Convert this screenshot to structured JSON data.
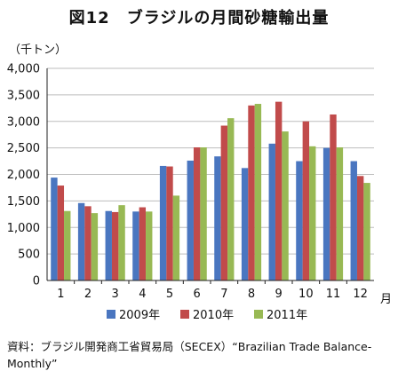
{
  "title": "図12　ブラジルの月間砂糖輸出量",
  "unit_label": "（千トン）",
  "x_unit": "月",
  "source_text": "資料：ブラジル開発商工省貿易局（SECEX）“Brazilian Trade Balance-Monthly”",
  "chart_data": {
    "type": "bar",
    "title": "図12　ブラジルの月間砂糖輸出量",
    "ylabel": "（千トン）",
    "xlabel": "月",
    "categories": [
      "1",
      "2",
      "3",
      "4",
      "5",
      "6",
      "7",
      "8",
      "9",
      "10",
      "11",
      "12"
    ],
    "ylim": [
      0,
      4000
    ],
    "yticks": [
      "0",
      "500",
      "1,000",
      "1,500",
      "2,000",
      "2,500",
      "3,000",
      "3,500",
      "4,000"
    ],
    "ytick_values": [
      0,
      500,
      1000,
      1500,
      2000,
      2500,
      3000,
      3500,
      4000
    ],
    "grid": true,
    "legend_position": "bottom",
    "series": [
      {
        "name": "2009年",
        "color": "#4a76c0",
        "values": [
          1940,
          1460,
          1310,
          1300,
          2160,
          2260,
          2340,
          2120,
          2580,
          2250,
          2500,
          2250
        ]
      },
      {
        "name": "2010年",
        "color": "#c14b4b",
        "values": [
          1790,
          1400,
          1290,
          1380,
          2150,
          2510,
          2920,
          3300,
          3370,
          3000,
          3130,
          1970
        ]
      },
      {
        "name": "2011年",
        "color": "#98b954",
        "values": [
          1310,
          1270,
          1420,
          1300,
          1600,
          2510,
          3060,
          3330,
          2810,
          2530,
          2510,
          1840
        ]
      }
    ]
  }
}
